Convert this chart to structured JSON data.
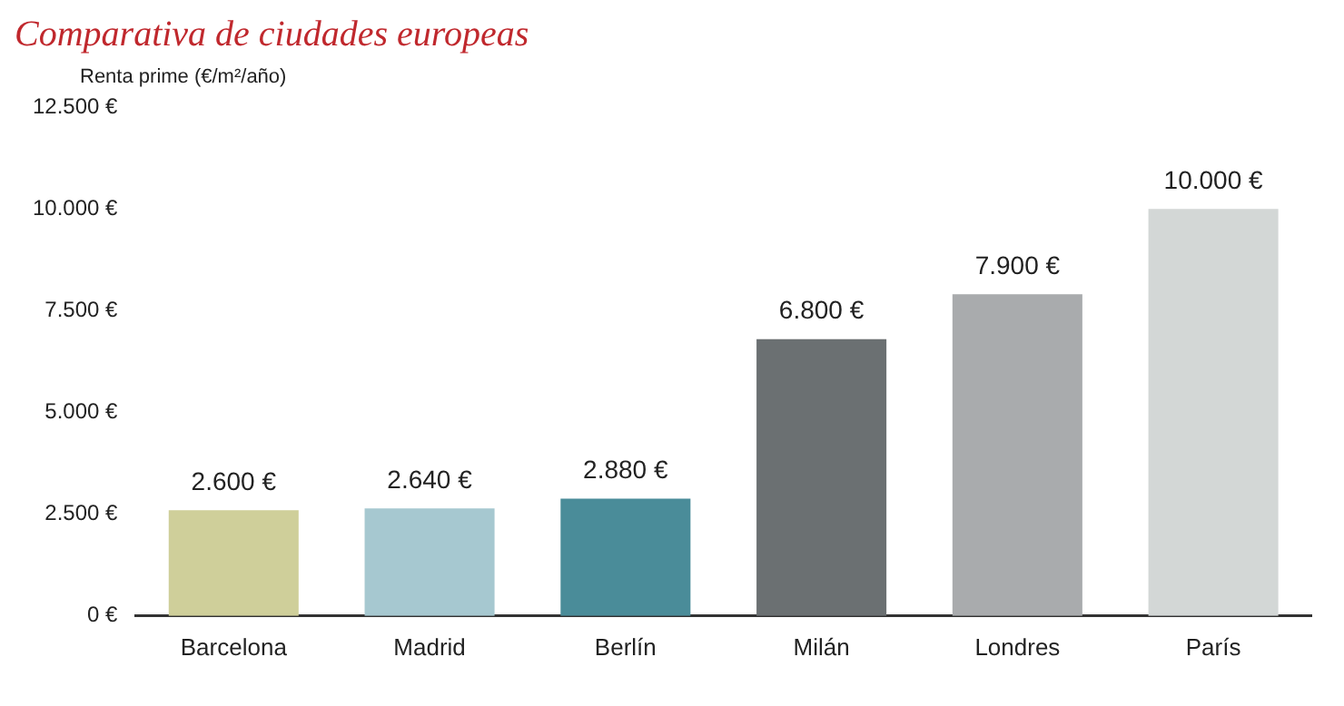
{
  "chart_data": {
    "type": "bar",
    "title": "Comparativa de ciudades europeas",
    "ylabel": "Renta prime (€/m²/año)",
    "categories": [
      "Barcelona",
      "Madrid",
      "Berlín",
      "Milán",
      "Londres",
      "París"
    ],
    "values": [
      2600,
      2640,
      2880,
      6800,
      7900,
      10000
    ],
    "colors": [
      "#cfcf9a",
      "#a6c8d0",
      "#4a8c99",
      "#6b7072",
      "#a9abad",
      "#d3d7d6"
    ],
    "value_labels": [
      "2.600 €",
      "2.640 €",
      "2.880 €",
      "6.800 €",
      "7.900 €",
      "10.000 €"
    ],
    "ylim": [
      0,
      12500
    ],
    "yticks": [
      {
        "value": 0,
        "label": "0 €"
      },
      {
        "value": 2500,
        "label": "2.500 €"
      },
      {
        "value": 5000,
        "label": "5.000 €"
      },
      {
        "value": 7500,
        "label": "7.500 €"
      },
      {
        "value": 10000,
        "label": "10.000 €"
      },
      {
        "value": 12500,
        "label": "12.500 €"
      }
    ],
    "grid": false,
    "legend": false
  }
}
